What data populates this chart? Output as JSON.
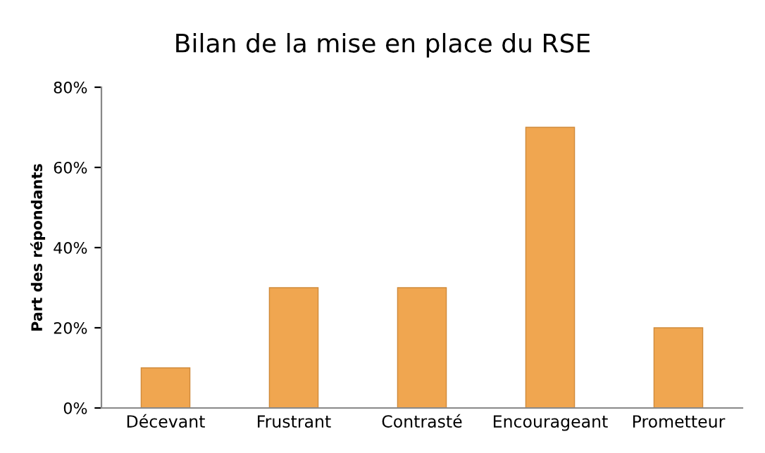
{
  "chart_data": {
    "type": "bar",
    "title": "Bilan de la mise en place du RSE",
    "ylabel": "Part des répondants",
    "categories": [
      "Décevant",
      "Frustrant",
      "Contrasté",
      "Encourageant",
      "Prometteur"
    ],
    "values": [
      10,
      30,
      30,
      70,
      20
    ],
    "color": "#f0a650",
    "ylim": [
      0,
      80
    ],
    "yticks": [
      {
        "value": 0,
        "label": "0%"
      },
      {
        "value": 20,
        "label": "20%"
      },
      {
        "value": 40,
        "label": "40%"
      },
      {
        "value": 60,
        "label": "60%"
      },
      {
        "value": 80,
        "label": "80%"
      }
    ],
    "grid": false
  }
}
